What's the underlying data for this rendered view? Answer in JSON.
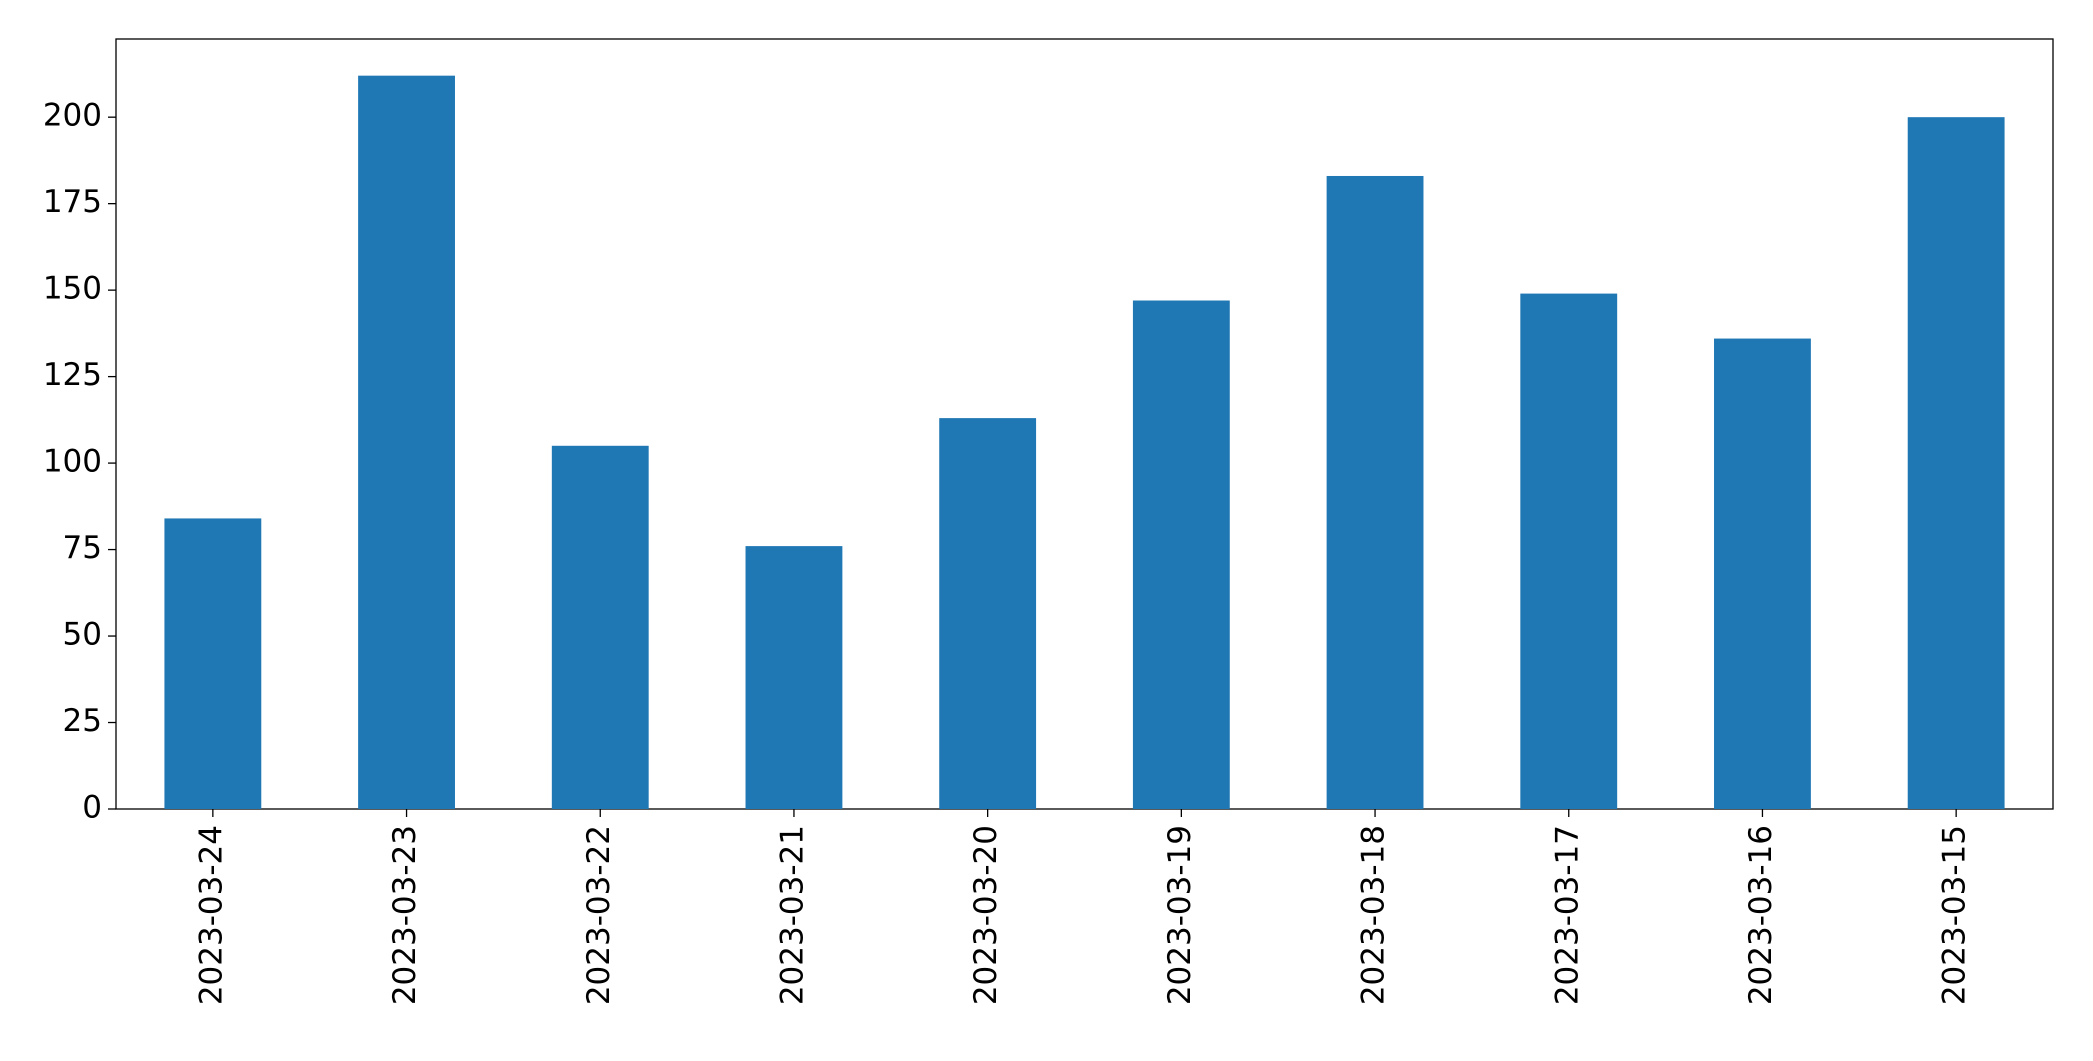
{
  "chart_data": {
    "type": "bar",
    "categories": [
      "2023-03-24",
      "2023-03-23",
      "2023-03-22",
      "2023-03-21",
      "2023-03-20",
      "2023-03-19",
      "2023-03-18",
      "2023-03-17",
      "2023-03-16",
      "2023-03-15"
    ],
    "values": [
      84,
      212,
      105,
      76,
      113,
      147,
      183,
      149,
      136,
      200
    ],
    "color": "#1f77b4",
    "ylim": [
      0,
      222.6
    ],
    "yticks": [
      0,
      25,
      50,
      75,
      100,
      125,
      150,
      175,
      200
    ],
    "grid": false
  }
}
